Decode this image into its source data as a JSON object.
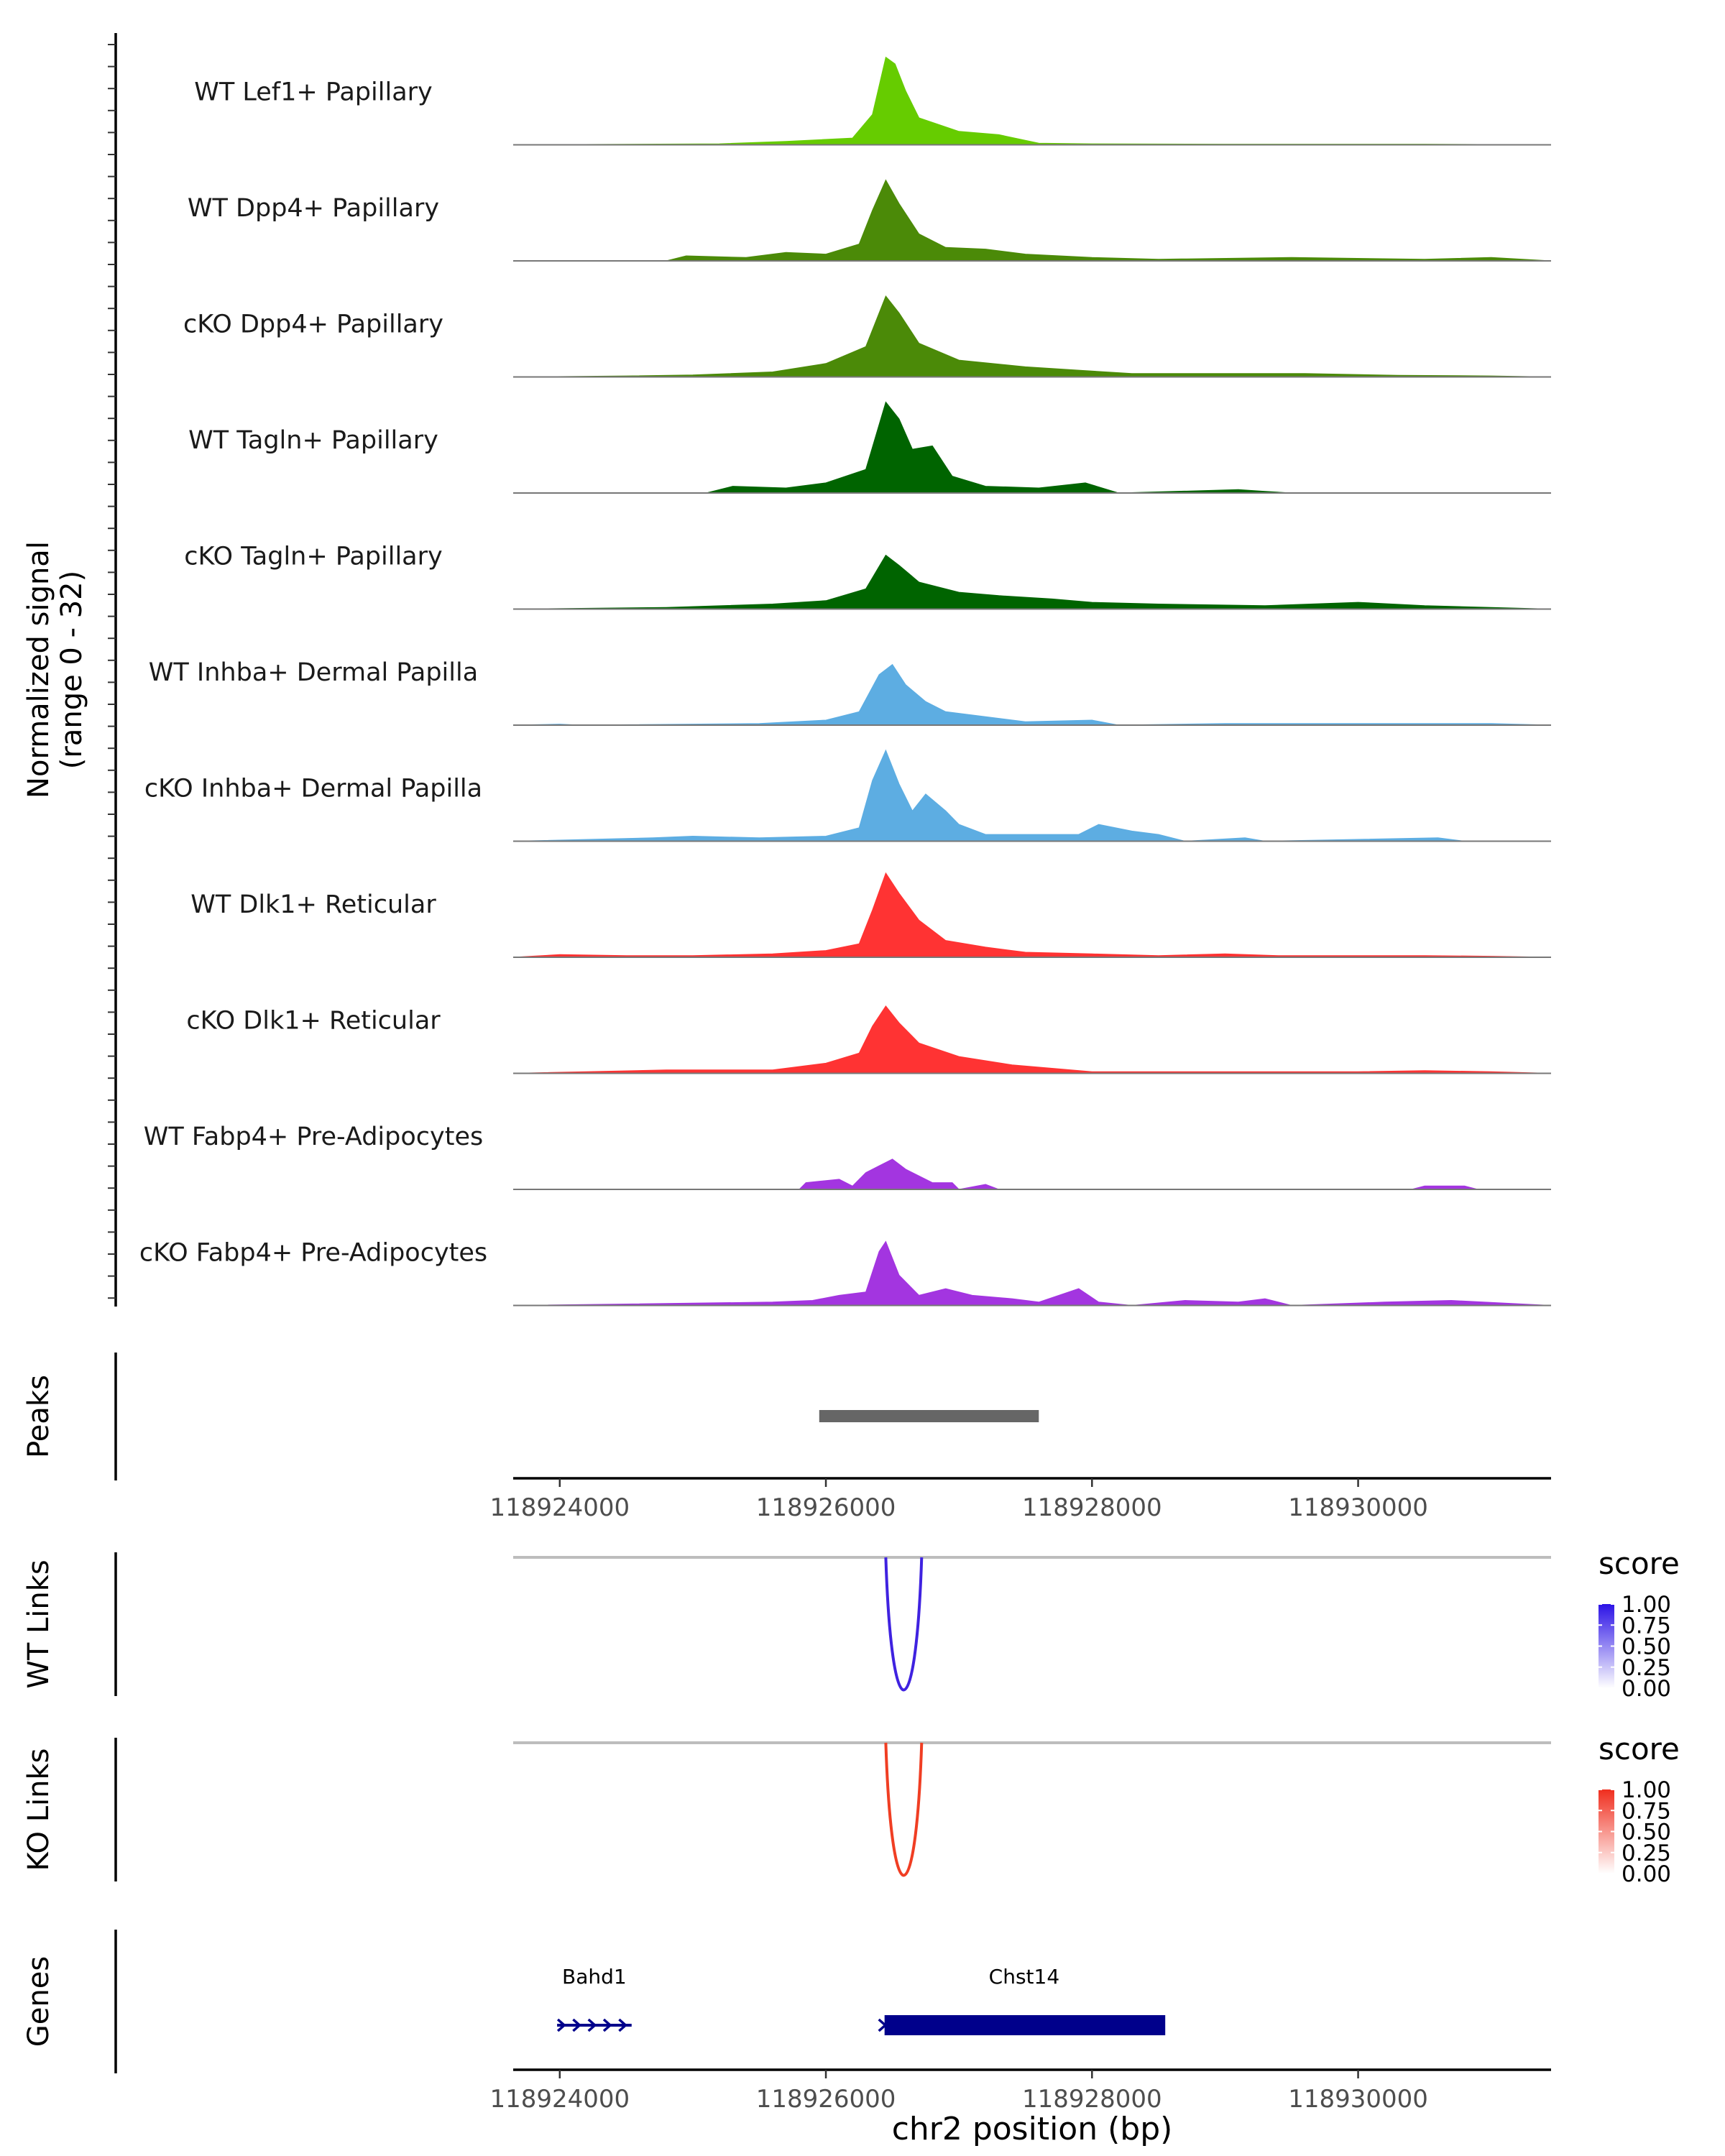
{
  "chart_data": {
    "type": "area",
    "title": "",
    "xlabel": "chr2 position (bp)",
    "xlim": [
      118923650,
      118931450
    ],
    "x_ticks": [
      "118924000",
      "118926000",
      "118928000",
      "118930000"
    ],
    "coverage": {
      "ylabel": "Normalized signal",
      "ylabel_range": "(range 0 - 32)",
      "ylim": [
        0,
        32
      ],
      "tracks": [
        {
          "name": "WT Lef1+ Papillary",
          "color": "#66CC00",
          "points": [
            [
              118923650,
              0
            ],
            [
              118925200,
              0.3
            ],
            [
              118925700,
              1
            ],
            [
              118926200,
              2
            ],
            [
              118926350,
              9
            ],
            [
              118926450,
              26
            ],
            [
              118926520,
              24
            ],
            [
              118926600,
              16
            ],
            [
              118926700,
              8
            ],
            [
              118927000,
              4
            ],
            [
              118927300,
              3
            ],
            [
              118927600,
              0.5
            ],
            [
              118928000,
              0.3
            ],
            [
              118929000,
              0.2
            ],
            [
              118930500,
              0.2
            ],
            [
              118931450,
              0
            ]
          ]
        },
        {
          "name": "WT Dpp4+ Papillary",
          "color": "#4B8A08",
          "points": [
            [
              118923650,
              0
            ],
            [
              118924800,
              0
            ],
            [
              118924950,
              1.5
            ],
            [
              118925400,
              1
            ],
            [
              118925700,
              2.5
            ],
            [
              118926000,
              2
            ],
            [
              118926250,
              5
            ],
            [
              118926350,
              15
            ],
            [
              118926450,
              24
            ],
            [
              118926550,
              17
            ],
            [
              118926700,
              8
            ],
            [
              118926900,
              4
            ],
            [
              118927200,
              3.5
            ],
            [
              118927500,
              2
            ],
            [
              118928000,
              1
            ],
            [
              118928500,
              0.5
            ],
            [
              118929500,
              1
            ],
            [
              118930500,
              0.5
            ],
            [
              118931000,
              1
            ],
            [
              118931450,
              0
            ]
          ]
        },
        {
          "name": "cKO Dpp4+ Papillary",
          "color": "#4B8A08",
          "points": [
            [
              118923650,
              0
            ],
            [
              118924500,
              0.3
            ],
            [
              118925000,
              0.6
            ],
            [
              118925600,
              1.5
            ],
            [
              118926000,
              4
            ],
            [
              118926300,
              9
            ],
            [
              118926450,
              24
            ],
            [
              118926550,
              19
            ],
            [
              118926700,
              10
            ],
            [
              118927000,
              5
            ],
            [
              118927500,
              3
            ],
            [
              118927900,
              2
            ],
            [
              118928300,
              1
            ],
            [
              118929000,
              1
            ],
            [
              118929600,
              1
            ],
            [
              118930300,
              0.5
            ],
            [
              118931000,
              0.3
            ],
            [
              118931450,
              0
            ]
          ]
        },
        {
          "name": "WT Tagln+ Papillary",
          "color": "#006400",
          "points": [
            [
              118923650,
              0
            ],
            [
              118925100,
              0
            ],
            [
              118925300,
              2
            ],
            [
              118925700,
              1.5
            ],
            [
              118926000,
              3
            ],
            [
              118926300,
              7
            ],
            [
              118926450,
              27
            ],
            [
              118926550,
              22
            ],
            [
              118926650,
              13
            ],
            [
              118926800,
              14
            ],
            [
              118926950,
              5
            ],
            [
              118927200,
              2
            ],
            [
              118927600,
              1.5
            ],
            [
              118927950,
              3
            ],
            [
              118928200,
              0
            ],
            [
              118929100,
              1
            ],
            [
              118929300,
              0.5
            ],
            [
              118929500,
              0
            ],
            [
              118931450,
              0
            ]
          ]
        },
        {
          "name": "cKO Tagln+ Papillary",
          "color": "#006400",
          "points": [
            [
              118923650,
              0
            ],
            [
              118924800,
              0.5
            ],
            [
              118925600,
              1.5
            ],
            [
              118926000,
              2.5
            ],
            [
              118926300,
              6
            ],
            [
              118926450,
              16
            ],
            [
              118926550,
              13
            ],
            [
              118926700,
              8
            ],
            [
              118927000,
              5
            ],
            [
              118927300,
              4
            ],
            [
              118927700,
              3
            ],
            [
              118928000,
              2
            ],
            [
              118928500,
              1.5
            ],
            [
              118929300,
              1
            ],
            [
              118930000,
              2
            ],
            [
              118930500,
              1
            ],
            [
              118931000,
              0.5
            ],
            [
              118931450,
              0
            ]
          ]
        },
        {
          "name": "WT Inhba+ Dermal Papilla",
          "color": "#5DADE2",
          "points": [
            [
              118923650,
              0
            ],
            [
              118924000,
              0.3
            ],
            [
              118924150,
              0
            ],
            [
              118925500,
              0.5
            ],
            [
              118926000,
              1.5
            ],
            [
              118926250,
              4
            ],
            [
              118926400,
              15
            ],
            [
              118926500,
              18
            ],
            [
              118926600,
              12
            ],
            [
              118926750,
              7
            ],
            [
              118926900,
              4
            ],
            [
              118927200,
              2.5
            ],
            [
              118927500,
              1
            ],
            [
              118928000,
              1.5
            ],
            [
              118928200,
              0
            ],
            [
              118929000,
              0.5
            ],
            [
              118930000,
              0.5
            ],
            [
              118931000,
              0.5
            ],
            [
              118931450,
              0
            ]
          ]
        },
        {
          "name": "cKO Inhba+ Dermal Papilla",
          "color": "#5DADE2",
          "points": [
            [
              118923650,
              0
            ],
            [
              118924700,
              1
            ],
            [
              118925000,
              1.5
            ],
            [
              118925500,
              1
            ],
            [
              118926000,
              1.5
            ],
            [
              118926250,
              4
            ],
            [
              118926350,
              18
            ],
            [
              118926450,
              27
            ],
            [
              118926550,
              17
            ],
            [
              118926650,
              9
            ],
            [
              118926750,
              14
            ],
            [
              118926900,
              9
            ],
            [
              118927000,
              5
            ],
            [
              118927200,
              2
            ],
            [
              118927900,
              2
            ],
            [
              118928050,
              5
            ],
            [
              118928300,
              3
            ],
            [
              118928500,
              2
            ],
            [
              118928700,
              0
            ],
            [
              118929150,
              1
            ],
            [
              118929300,
              0
            ],
            [
              118930600,
              1
            ],
            [
              118930800,
              0
            ],
            [
              118931450,
              0
            ]
          ]
        },
        {
          "name": "WT Dlk1+ Reticular",
          "color": "#FF3333",
          "points": [
            [
              118923650,
              0
            ],
            [
              118924000,
              0.8
            ],
            [
              118924500,
              0.5
            ],
            [
              118925000,
              0.5
            ],
            [
              118925600,
              1
            ],
            [
              118926000,
              2
            ],
            [
              118926250,
              4
            ],
            [
              118926350,
              14
            ],
            [
              118926450,
              25
            ],
            [
              118926550,
              19
            ],
            [
              118926700,
              11
            ],
            [
              118926900,
              5
            ],
            [
              118927200,
              3
            ],
            [
              118927500,
              1.5
            ],
            [
              118928000,
              1
            ],
            [
              118928500,
              0.5
            ],
            [
              118929000,
              1
            ],
            [
              118929400,
              0.5
            ],
            [
              118930000,
              0.5
            ],
            [
              118930500,
              0.5
            ],
            [
              118931000,
              0.3
            ],
            [
              118931450,
              0
            ]
          ]
        },
        {
          "name": "cKO Dlk1+ Reticular",
          "color": "#FF3333",
          "points": [
            [
              118923650,
              0
            ],
            [
              118924200,
              0.5
            ],
            [
              118924800,
              1
            ],
            [
              118925600,
              1
            ],
            [
              118926000,
              3
            ],
            [
              118926250,
              6
            ],
            [
              118926350,
              14
            ],
            [
              118926450,
              20
            ],
            [
              118926550,
              15
            ],
            [
              118926700,
              9
            ],
            [
              118927000,
              5
            ],
            [
              118927400,
              2.5
            ],
            [
              118927700,
              1.5
            ],
            [
              118928000,
              0.5
            ],
            [
              118928500,
              0.5
            ],
            [
              118929000,
              0.5
            ],
            [
              118929500,
              0.5
            ],
            [
              118930000,
              0.5
            ],
            [
              118930500,
              0.8
            ],
            [
              118931000,
              0.5
            ],
            [
              118931450,
              0
            ]
          ]
        },
        {
          "name": "WT Fabp4+ Pre-Adipocytes",
          "color": "#A335E0",
          "points": [
            [
              118923650,
              0
            ],
            [
              118925800,
              0
            ],
            [
              118925850,
              2
            ],
            [
              118926100,
              3
            ],
            [
              118926200,
              1
            ],
            [
              118926300,
              5
            ],
            [
              118926400,
              7
            ],
            [
              118926500,
              9
            ],
            [
              118926600,
              6
            ],
            [
              118926800,
              2
            ],
            [
              118926950,
              2
            ],
            [
              118927000,
              0
            ],
            [
              118927200,
              1.5
            ],
            [
              118927300,
              0
            ],
            [
              118930400,
              0
            ],
            [
              118930500,
              1
            ],
            [
              118930800,
              1
            ],
            [
              118930900,
              0
            ],
            [
              118931450,
              0
            ]
          ]
        },
        {
          "name": "cKO Fabp4+ Pre-Adipocytes",
          "color": "#A335E0",
          "points": [
            [
              118923650,
              0
            ],
            [
              118925600,
              1
            ],
            [
              118925900,
              1.5
            ],
            [
              118926100,
              3
            ],
            [
              118926300,
              4
            ],
            [
              118926400,
              16
            ],
            [
              118926450,
              19
            ],
            [
              118926550,
              9
            ],
            [
              118926700,
              3
            ],
            [
              118926900,
              5
            ],
            [
              118927100,
              3
            ],
            [
              118927400,
              2
            ],
            [
              118927600,
              1
            ],
            [
              118927900,
              5
            ],
            [
              118928050,
              1
            ],
            [
              118928300,
              0
            ],
            [
              118928700,
              1.5
            ],
            [
              118929100,
              1
            ],
            [
              118929300,
              2
            ],
            [
              118929500,
              0
            ],
            [
              118930200,
              1
            ],
            [
              118930700,
              1.5
            ],
            [
              118931450,
              0
            ]
          ]
        }
      ]
    },
    "peaks": {
      "label": "Peaks",
      "regions": [
        [
          118925950,
          118927600
        ]
      ]
    },
    "links": [
      {
        "label": "WT Links",
        "color": "#3F22E0",
        "start": 118926450,
        "end": 118926720,
        "score": 1.0,
        "legend": {
          "title": "score",
          "ticks": [
            "1.00",
            "0.75",
            "0.50",
            "0.25",
            "0.00"
          ],
          "high": "#2C13E6",
          "low": "#FFFFFF"
        }
      },
      {
        "label": "KO Links",
        "color": "#F03E23",
        "start": 118926450,
        "end": 118926720,
        "score": 1.0,
        "legend": {
          "title": "score",
          "ticks": [
            "1.00",
            "0.75",
            "0.50",
            "0.25",
            "0.00"
          ],
          "high": "#F02E1E",
          "low": "#FFFFFF"
        }
      }
    ],
    "genes": {
      "label": "Genes",
      "color": "#00008B",
      "items": [
        {
          "name": "Bahd1",
          "start": 118923980,
          "end": 118924540,
          "strand": "+"
        },
        {
          "name": "Chst14",
          "start": 118926430,
          "end": 118928550,
          "strand": "+"
        }
      ]
    }
  }
}
